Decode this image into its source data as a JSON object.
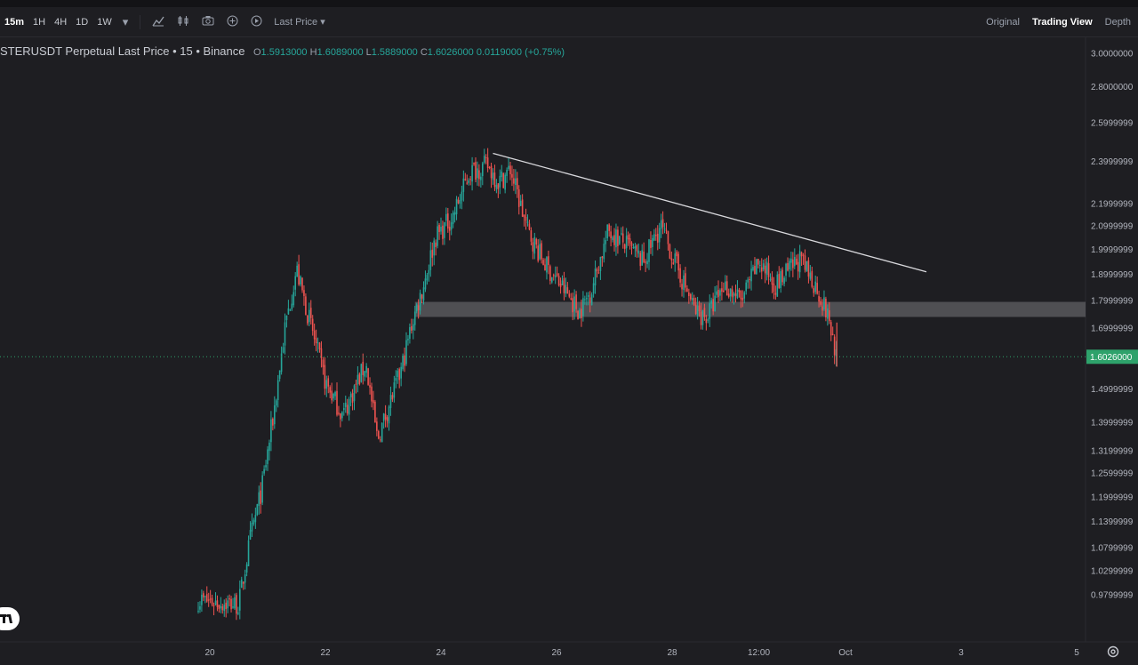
{
  "toolbar": {
    "timeframes": [
      "15m",
      "1H",
      "4H",
      "1D",
      "1W"
    ],
    "active_timeframe": "15m",
    "price_mode": "Last Price",
    "views": [
      "Original",
      "Trading View",
      "Depth"
    ],
    "active_view": "Trading View",
    "icons": [
      "chevron-down-icon",
      "indicators-icon",
      "candle-style-icon",
      "camera-icon",
      "plus-circle-icon",
      "replay-icon"
    ]
  },
  "legend": {
    "symbol": "STERUSDT Perpetual Last Price • 15 • Binance",
    "open_label": "O",
    "open": "1.5913000",
    "high_label": "H",
    "high": "1.6089000",
    "low_label": "L",
    "low": "1.5889000",
    "close_label": "C",
    "close": "1.6026000",
    "change": "0.0119000 (+0.75%)"
  },
  "current_price": "1.6026000",
  "chart_data": {
    "type": "candlestick",
    "title": "STERUSDT Perpetual Last Price • 15 • Binance",
    "y_scale": "log",
    "y_tick_labels": [
      "3.0000000",
      "2.8000000",
      "2.5999999",
      "2.3999999",
      "2.1999999",
      "2.0999999",
      "1.9999999",
      "1.8999999",
      "1.7999999",
      "1.6999999",
      "1.4999999",
      "1.3999999",
      "1.3199999",
      "1.2599999",
      "1.1999999",
      "1.1399999",
      "1.0799999",
      "1.0299999",
      "0.9799999"
    ],
    "x_tick_labels": [
      "20",
      "22",
      "24",
      "26",
      "28",
      "12:00",
      "Oct",
      "3",
      "5"
    ],
    "x_ticks_day": [
      20,
      22,
      24,
      26,
      28,
      29.5,
      31,
      33,
      35
    ],
    "ylim": [
      0.95,
      3.05
    ],
    "price_path": [
      [
        19.8,
        0.97
      ],
      [
        20.5,
        0.96
      ],
      [
        20.7,
        1.1
      ],
      [
        20.9,
        1.22
      ],
      [
        21.1,
        1.42
      ],
      [
        21.3,
        1.7
      ],
      [
        21.5,
        1.92
      ],
      [
        21.6,
        1.83
      ],
      [
        21.8,
        1.67
      ],
      [
        22.0,
        1.52
      ],
      [
        22.3,
        1.42
      ],
      [
        22.5,
        1.5
      ],
      [
        22.7,
        1.58
      ],
      [
        22.9,
        1.35
      ],
      [
        23.1,
        1.45
      ],
      [
        23.3,
        1.55
      ],
      [
        23.5,
        1.72
      ],
      [
        23.7,
        1.86
      ],
      [
        23.9,
        2.05
      ],
      [
        24.2,
        2.14
      ],
      [
        24.5,
        2.35
      ],
      [
        24.8,
        2.38
      ],
      [
        25.0,
        2.3
      ],
      [
        25.2,
        2.36
      ],
      [
        25.5,
        2.08
      ],
      [
        25.8,
        1.94
      ],
      [
        26.1,
        1.85
      ],
      [
        26.4,
        1.76
      ],
      [
        26.6,
        1.84
      ],
      [
        26.9,
        2.08
      ],
      [
        27.2,
        2.02
      ],
      [
        27.5,
        1.95
      ],
      [
        27.8,
        2.1
      ],
      [
        28.1,
        1.92
      ],
      [
        28.4,
        1.76
      ],
      [
        28.6,
        1.74
      ],
      [
        28.9,
        1.86
      ],
      [
        29.2,
        1.8
      ],
      [
        29.5,
        1.95
      ],
      [
        29.8,
        1.86
      ],
      [
        30.2,
        1.96
      ],
      [
        30.5,
        1.85
      ],
      [
        30.7,
        1.74
      ],
      [
        30.85,
        1.6
      ]
    ],
    "trendline": [
      [
        24.9,
        2.44
      ],
      [
        32.4,
        1.91
      ]
    ],
    "zone": [
      1.74,
      1.795
    ],
    "last_price": 1.6026
  },
  "colors": {
    "up": "#26a69a",
    "down": "#ef5350",
    "background": "#1e1e22",
    "zone": "#606064",
    "trendline": "#d8d8dc",
    "price_tag": "#2ea26b"
  }
}
